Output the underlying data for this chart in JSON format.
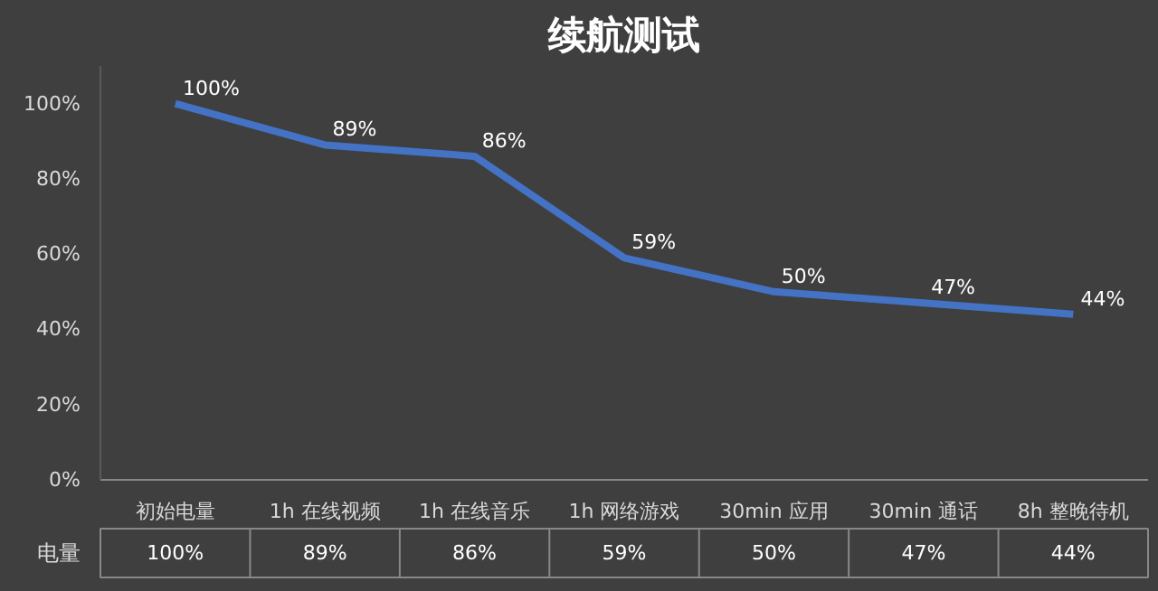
{
  "chart_data": {
    "type": "line",
    "title": "续航测试",
    "categories": [
      "初始电量",
      "1h 在线视频",
      "1h 在线音乐",
      "1h 网络游戏",
      "30min 应用",
      "30min 通话",
      "8h 整晚待机"
    ],
    "series": [
      {
        "name": "电量",
        "color": "#4472c4",
        "values": [
          100,
          89,
          86,
          59,
          50,
          47,
          44
        ],
        "value_labels": [
          "100%",
          "89%",
          "86%",
          "59%",
          "50%",
          "47%",
          "44%"
        ]
      }
    ],
    "ylim": [
      0,
      110
    ],
    "yticks": [
      {
        "value": 0,
        "label": "0%"
      },
      {
        "value": 20,
        "label": "20%"
      },
      {
        "value": 40,
        "label": "40%"
      },
      {
        "value": 60,
        "label": "60%"
      },
      {
        "value": 80,
        "label": "80%"
      },
      {
        "value": 100,
        "label": "100%"
      }
    ],
    "grid": false,
    "legend": false,
    "marker": "none",
    "line_style": "solid"
  }
}
